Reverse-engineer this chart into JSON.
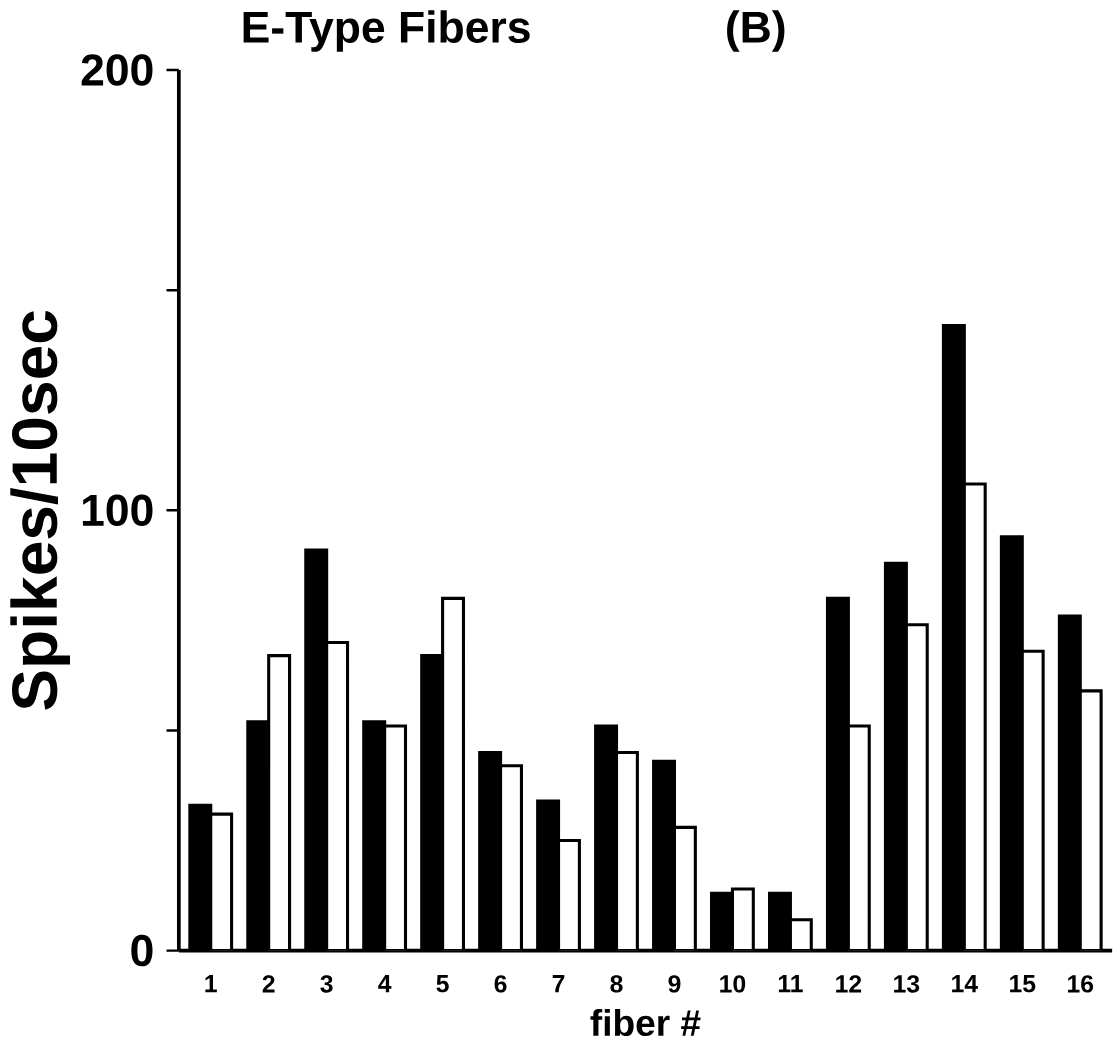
{
  "chart_data": {
    "type": "bar",
    "title": "E-Type Fibers",
    "annotations": [
      "(B)"
    ],
    "xlabel": "fiber #",
    "ylabel": "Spikes/10sec",
    "categories": [
      "1",
      "2",
      "3",
      "4",
      "5",
      "6",
      "7",
      "8",
      "9",
      "10",
      "11",
      "12",
      "13",
      "14",
      "15",
      "16"
    ],
    "series": [
      {
        "color": "#000000",
        "values": [
          33,
          52,
          91,
          52,
          67,
          45,
          34,
          51,
          43,
          13,
          13,
          80,
          88,
          142,
          94,
          76
        ]
      },
      {
        "color": "#ffffff",
        "values": [
          31,
          67,
          70,
          51,
          80,
          42,
          25,
          45,
          28,
          14,
          7,
          51,
          74,
          106,
          68,
          59
        ]
      }
    ],
    "ylim": [
      0,
      200
    ],
    "yticks": [
      0,
      {
        "value": 50,
        "label": null
      },
      100,
      {
        "value": 150,
        "label": null
      },
      200
    ],
    "grid": false
  }
}
